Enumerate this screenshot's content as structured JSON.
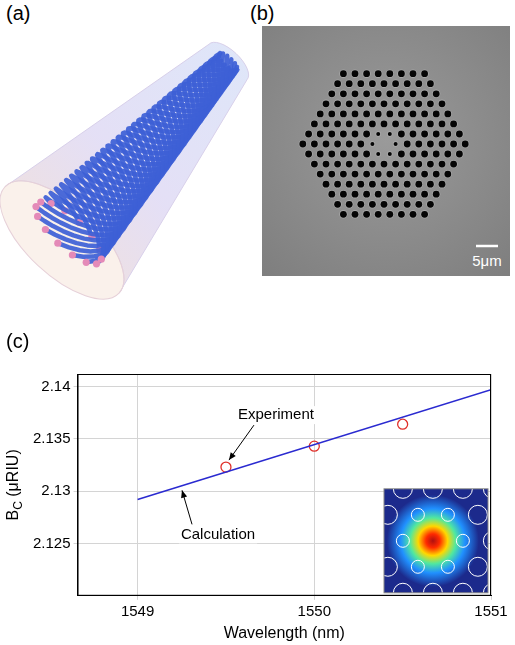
{
  "figure": {
    "panel_a": {
      "letter": "(a)"
    },
    "panel_b": {
      "letter": "(b)",
      "scale_bar": "5μm"
    }
  },
  "chart_data": {
    "letter": "(c)",
    "type": "line",
    "x_label": "Wavelength (nm)",
    "y_label": {
      "main": "B",
      "subscript": "C",
      "unit": " (μRIU)"
    },
    "series": [
      {
        "name": "Calculation",
        "type": "line",
        "color": "#2a2ad0",
        "marker": "none",
        "line_style": "solid",
        "x": [
          1549,
          1551
        ],
        "values": [
          2.1292,
          2.1397
        ]
      },
      {
        "name": "Experiment",
        "type": "scatter",
        "color": "#e0302a",
        "marker": "open_circle",
        "x": [
          1549.5,
          1550,
          1550.5
        ],
        "values": [
          2.1323,
          2.1343,
          2.1364
        ]
      }
    ],
    "xlim": [
      1548.66,
      1551
    ],
    "xticks": [
      1549,
      1550,
      1551
    ],
    "ylim": [
      2.12,
      2.1412
    ],
    "yticks": [
      2.125,
      2.13,
      2.135,
      2.14
    ],
    "grid": true
  }
}
